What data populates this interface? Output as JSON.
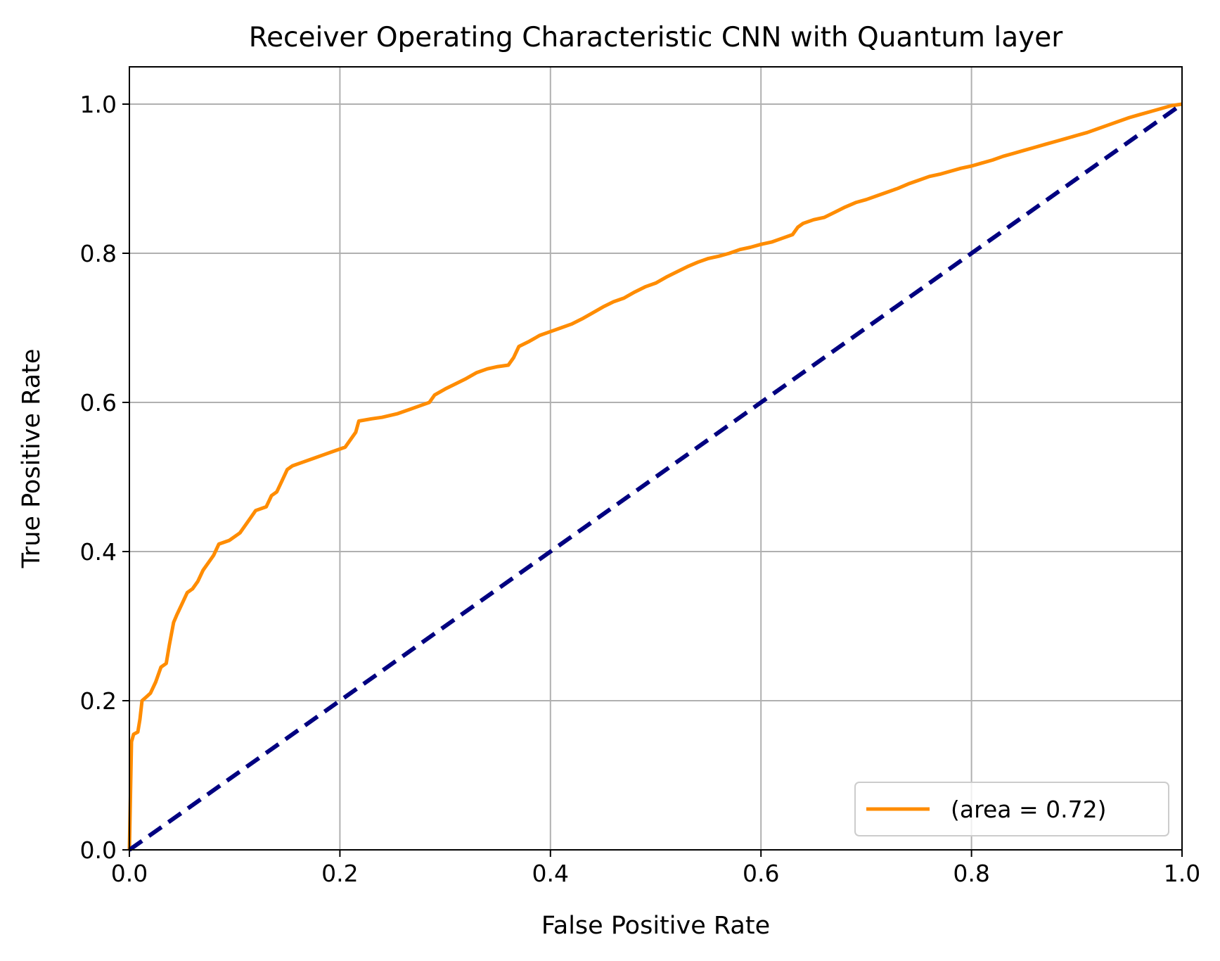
{
  "chart_data": {
    "type": "line",
    "title": "Receiver Operating Characteristic CNN with Quantum layer",
    "xlabel": "False Positive Rate",
    "ylabel": "True Positive Rate",
    "xlim": [
      0.0,
      1.0
    ],
    "ylim": [
      0.0,
      1.05
    ],
    "xticks": [
      "0.0",
      "0.2",
      "0.4",
      "0.6",
      "0.8",
      "1.0"
    ],
    "yticks": [
      "0.0",
      "0.2",
      "0.4",
      "0.6",
      "0.8",
      "1.0"
    ],
    "grid": true,
    "legend_position": "lower-right",
    "series": [
      {
        "name": "(area = 0.72)",
        "color": "#ff8c00",
        "style": "solid",
        "points": [
          [
            0.0,
            0.0
          ],
          [
            0.002,
            0.145
          ],
          [
            0.004,
            0.155
          ],
          [
            0.008,
            0.158
          ],
          [
            0.01,
            0.175
          ],
          [
            0.012,
            0.2
          ],
          [
            0.016,
            0.205
          ],
          [
            0.02,
            0.21
          ],
          [
            0.025,
            0.225
          ],
          [
            0.03,
            0.245
          ],
          [
            0.035,
            0.25
          ],
          [
            0.038,
            0.275
          ],
          [
            0.04,
            0.29
          ],
          [
            0.042,
            0.305
          ],
          [
            0.045,
            0.315
          ],
          [
            0.05,
            0.33
          ],
          [
            0.055,
            0.345
          ],
          [
            0.06,
            0.35
          ],
          [
            0.065,
            0.36
          ],
          [
            0.07,
            0.375
          ],
          [
            0.075,
            0.385
          ],
          [
            0.08,
            0.395
          ],
          [
            0.085,
            0.41
          ],
          [
            0.095,
            0.415
          ],
          [
            0.105,
            0.425
          ],
          [
            0.11,
            0.435
          ],
          [
            0.115,
            0.445
          ],
          [
            0.12,
            0.455
          ],
          [
            0.13,
            0.46
          ],
          [
            0.135,
            0.475
          ],
          [
            0.14,
            0.48
          ],
          [
            0.145,
            0.495
          ],
          [
            0.15,
            0.51
          ],
          [
            0.155,
            0.515
          ],
          [
            0.165,
            0.52
          ],
          [
            0.175,
            0.525
          ],
          [
            0.185,
            0.53
          ],
          [
            0.195,
            0.535
          ],
          [
            0.205,
            0.54
          ],
          [
            0.21,
            0.55
          ],
          [
            0.215,
            0.56
          ],
          [
            0.218,
            0.575
          ],
          [
            0.23,
            0.578
          ],
          [
            0.24,
            0.58
          ],
          [
            0.255,
            0.585
          ],
          [
            0.265,
            0.59
          ],
          [
            0.275,
            0.595
          ],
          [
            0.285,
            0.6
          ],
          [
            0.29,
            0.61
          ],
          [
            0.3,
            0.618
          ],
          [
            0.31,
            0.625
          ],
          [
            0.32,
            0.632
          ],
          [
            0.33,
            0.64
          ],
          [
            0.34,
            0.645
          ],
          [
            0.35,
            0.648
          ],
          [
            0.36,
            0.65
          ],
          [
            0.365,
            0.66
          ],
          [
            0.37,
            0.675
          ],
          [
            0.38,
            0.682
          ],
          [
            0.39,
            0.69
          ],
          [
            0.4,
            0.695
          ],
          [
            0.41,
            0.7
          ],
          [
            0.42,
            0.705
          ],
          [
            0.43,
            0.712
          ],
          [
            0.44,
            0.72
          ],
          [
            0.45,
            0.728
          ],
          [
            0.46,
            0.735
          ],
          [
            0.47,
            0.74
          ],
          [
            0.48,
            0.748
          ],
          [
            0.49,
            0.755
          ],
          [
            0.5,
            0.76
          ],
          [
            0.51,
            0.768
          ],
          [
            0.52,
            0.775
          ],
          [
            0.53,
            0.782
          ],
          [
            0.54,
            0.788
          ],
          [
            0.55,
            0.793
          ],
          [
            0.56,
            0.796
          ],
          [
            0.57,
            0.8
          ],
          [
            0.58,
            0.805
          ],
          [
            0.59,
            0.808
          ],
          [
            0.6,
            0.812
          ],
          [
            0.61,
            0.815
          ],
          [
            0.62,
            0.82
          ],
          [
            0.63,
            0.825
          ],
          [
            0.635,
            0.835
          ],
          [
            0.64,
            0.84
          ],
          [
            0.65,
            0.845
          ],
          [
            0.66,
            0.848
          ],
          [
            0.67,
            0.855
          ],
          [
            0.68,
            0.862
          ],
          [
            0.69,
            0.868
          ],
          [
            0.7,
            0.872
          ],
          [
            0.71,
            0.877
          ],
          [
            0.72,
            0.882
          ],
          [
            0.73,
            0.887
          ],
          [
            0.74,
            0.893
          ],
          [
            0.75,
            0.898
          ],
          [
            0.76,
            0.903
          ],
          [
            0.77,
            0.906
          ],
          [
            0.78,
            0.91
          ],
          [
            0.79,
            0.914
          ],
          [
            0.8,
            0.917
          ],
          [
            0.81,
            0.921
          ],
          [
            0.82,
            0.925
          ],
          [
            0.83,
            0.93
          ],
          [
            0.84,
            0.934
          ],
          [
            0.85,
            0.938
          ],
          [
            0.86,
            0.942
          ],
          [
            0.87,
            0.946
          ],
          [
            0.88,
            0.95
          ],
          [
            0.89,
            0.954
          ],
          [
            0.9,
            0.958
          ],
          [
            0.91,
            0.962
          ],
          [
            0.92,
            0.967
          ],
          [
            0.93,
            0.972
          ],
          [
            0.94,
            0.977
          ],
          [
            0.95,
            0.982
          ],
          [
            0.96,
            0.986
          ],
          [
            0.97,
            0.99
          ],
          [
            0.98,
            0.994
          ],
          [
            0.99,
            0.998
          ],
          [
            1.0,
            1.0
          ]
        ]
      },
      {
        "name": "",
        "color": "#000080",
        "style": "dashed",
        "points": [
          [
            0.0,
            0.0
          ],
          [
            1.0,
            1.0
          ]
        ]
      }
    ]
  }
}
